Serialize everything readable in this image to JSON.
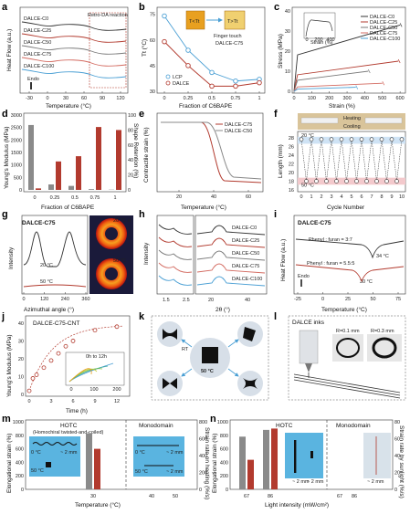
{
  "figure": {
    "panel_labels": [
      "a",
      "b",
      "c",
      "d",
      "e",
      "f",
      "g",
      "h",
      "i",
      "j",
      "k",
      "l",
      "m",
      "n"
    ]
  },
  "chart_data": [
    {
      "panel": "a",
      "type": "line",
      "xlabel": "Temperature (°C)",
      "ylabel": "Heat Flow (a.u.)",
      "xticks": [
        "-30",
        "0",
        "30",
        "60",
        "90",
        "120"
      ],
      "series": [
        {
          "name": "DALCE-C0"
        },
        {
          "name": "DALCE-C25"
        },
        {
          "name": "DALCE-C50"
        },
        {
          "name": "DALCE-C75"
        },
        {
          "name": "DALCE-C100"
        }
      ],
      "annotations": [
        "Retro-DA reaction",
        "Endo"
      ]
    },
    {
      "panel": "b",
      "type": "line",
      "xlabel": "Fraction of C6BAPE",
      "ylabel": "Tt (°C)",
      "xticks": [
        "0",
        "0.25",
        "0.5",
        "0.75",
        "1"
      ],
      "yticks": [
        "30",
        "45",
        "60",
        "75"
      ],
      "ylim": [
        30,
        78
      ],
      "x": [
        0,
        0.25,
        0.5,
        0.75,
        1
      ],
      "series": [
        {
          "name": "LCP",
          "values": [
            74,
            54,
            41,
            36,
            37
          ]
        },
        {
          "name": "DALCE",
          "values": [
            59,
            45,
            33,
            33,
            35
          ]
        }
      ],
      "annotations": [
        "Finger touch",
        "DALCE-C75",
        "T<Tt",
        "T>Tt"
      ]
    },
    {
      "panel": "c",
      "type": "line",
      "xlabel": "Strain (%)",
      "ylabel": "Stress (MPa)",
      "xticks": [
        "0",
        "100",
        "200",
        "300",
        "400",
        "500",
        "600"
      ],
      "yticks": [
        "0",
        "10",
        "20",
        "30",
        "40"
      ],
      "xlim": [
        0,
        620
      ],
      "ylim": [
        0,
        40
      ],
      "series": [
        {
          "name": "DALCE-C0",
          "end_strain": 600,
          "end_stress": 33
        },
        {
          "name": "DALCE-C25",
          "end_strain": 590,
          "end_stress": 15
        },
        {
          "name": "DALCE-C50",
          "end_strain": 420,
          "end_stress": 10
        },
        {
          "name": "DALCE-C75",
          "end_strain": 500,
          "end_stress": 4
        },
        {
          "name": "DALCE-C100",
          "end_strain": 350,
          "end_stress": 2
        }
      ],
      "inset": {
        "xlabel": "Strain (%)",
        "xticks": [
          "0",
          "200",
          "400"
        ]
      }
    },
    {
      "panel": "d",
      "type": "bar",
      "xlabel": "Fraction of C6BAPE",
      "ylabel": "Young's Modulus (MPa)",
      "y2label": "Shape Retention (%)",
      "categories": [
        "0",
        "0.25",
        "0.5",
        "0.75",
        "1"
      ],
      "yticks": [
        "0",
        "500",
        "1000",
        "1500",
        "2000",
        "2500",
        "3000"
      ],
      "y2ticks": [
        "0",
        "20",
        "40",
        "60",
        "80",
        "100"
      ],
      "ylim": [
        0,
        3000
      ],
      "y2lim": [
        0,
        100
      ],
      "series": [
        {
          "name": "Young's Modulus",
          "values": [
            2600,
            220,
            160,
            30,
            10
          ]
        },
        {
          "name": "Shape retention",
          "values": [
            2,
            38,
            45,
            84,
            80
          ]
        }
      ]
    },
    {
      "panel": "e",
      "type": "line",
      "xlabel": "Temperature (°C)",
      "ylabel": "Contractile strain (%)",
      "xticks": [
        "20",
        "40",
        "60"
      ],
      "series": [
        {
          "name": "DALCE-C75"
        },
        {
          "name": "DALCE-C50"
        }
      ]
    },
    {
      "panel": "f",
      "type": "line",
      "xlabel": "Cycle Number",
      "ylabel": "Length (mm)",
      "xticks": [
        "0",
        "1",
        "2",
        "3",
        "4",
        "5",
        "6",
        "7",
        "8",
        "9",
        "10"
      ],
      "yticks": [
        "16",
        "18",
        "20",
        "22",
        "24",
        "26",
        "28"
      ],
      "ylim": [
        16,
        29
      ],
      "x": [
        0,
        0.5,
        1,
        1.5,
        2,
        2.5,
        3,
        3.5,
        4,
        4.5,
        5,
        5.5,
        6,
        6.5,
        7,
        7.5,
        8,
        8.5,
        9,
        9.5,
        10
      ],
      "values": [
        27.6,
        18,
        27.6,
        18,
        27.6,
        18,
        27.6,
        18,
        27.6,
        18,
        27.6,
        18,
        27.6,
        18,
        27.6,
        18,
        27.6,
        18,
        27.6,
        18,
        27.6
      ],
      "labels": [
        "20 °C",
        "50 °C",
        "Heating",
        "Cooling"
      ]
    },
    {
      "panel": "g",
      "type": "line",
      "title": "DALCE-C75",
      "xlabel": "Azimuthal angle (°)",
      "ylabel": "Intensity",
      "xticks": [
        "0",
        "120",
        "240",
        "360"
      ],
      "labels": [
        "20 °C",
        "50 °C",
        "20 °C",
        "50 °C",
        "n"
      ]
    },
    {
      "panel": "h",
      "type": "line",
      "xlabel": "2θ (°)",
      "ylabel": "Intensity",
      "xticks": [
        "1.5",
        "2.5",
        "20",
        "40"
      ],
      "series": [
        {
          "name": "DALCE-C0"
        },
        {
          "name": "DALCE-C25"
        },
        {
          "name": "DALCE-C50"
        },
        {
          "name": "DALCE-C75"
        },
        {
          "name": "DALCE-C100"
        }
      ]
    },
    {
      "panel": "i",
      "type": "line",
      "title": "DALCE-C75",
      "xlabel": "Temperature (°C)",
      "ylabel": "Heat Flow (a.u.)",
      "xticks": [
        "-25",
        "0",
        "25",
        "50",
        "75"
      ],
      "annotations": [
        "Phenyl : furan = 3:7",
        "Phenyl : furan = 5.5:5",
        "34 °C",
        "30 °C",
        "Endo"
      ]
    },
    {
      "panel": "j",
      "type": "line",
      "title": "DALCE-C75-CNT",
      "xlabel": "Time (h)",
      "ylabel": "Young's Modulus (MPa)",
      "xticks": [
        "0",
        "3",
        "6",
        "9",
        "12"
      ],
      "yticks": [
        "0",
        "10",
        "20",
        "30",
        "40"
      ],
      "xlim": [
        0,
        13.5
      ],
      "ylim": [
        0,
        42
      ],
      "x": [
        0,
        0.5,
        1,
        2,
        3,
        4,
        5,
        6,
        9,
        12
      ],
      "values": [
        2,
        9,
        11,
        15,
        19,
        23,
        27,
        30,
        36,
        38
      ],
      "inset": {
        "label": "0h to 12h",
        "xlabel": "Strain (%)",
        "ylabel": "Stress (MPa)",
        "xticks": [
          "0",
          "100",
          "200"
        ]
      }
    },
    {
      "panel": "m",
      "type": "bar",
      "xlabel": "Temperature (°C)",
      "ylabel": "Elongational strain (%)",
      "y2label": "Strain rate on heating (%/s)",
      "groups": [
        "HOTC",
        "Monodomain"
      ],
      "group_subtitles": [
        "(Homochiral twisted-and-coiled)",
        ""
      ],
      "categories": [
        "30",
        "40",
        "50"
      ],
      "yticks": [
        "0",
        "200",
        "400",
        "600",
        "800",
        "1000"
      ],
      "y2ticks": [
        "0",
        "200",
        "400",
        "600",
        "800"
      ],
      "ylim": [
        0,
        1000
      ],
      "y2lim": [
        0,
        800
      ],
      "series": [
        {
          "name": "Elongational strain",
          "values": [
            830,
            0,
            0
          ]
        },
        {
          "name": "Strain rate",
          "values": [
            480,
            0,
            0
          ]
        }
      ],
      "labels": [
        "0 °C",
        "50 °C",
        "~ 2 mm",
        "0 °C",
        "50 °C",
        "~ 2 mm",
        "~ 2 mm",
        "~ 2 mm"
      ]
    },
    {
      "panel": "n",
      "type": "bar",
      "xlabel": "Light intensity (mW/cm²)",
      "ylabel": "Elongational strain (%)",
      "y2label": "Strain rate by sunlight (%/s)",
      "groups": [
        "HOTC",
        "Monodomain"
      ],
      "categories": [
        "67",
        "86",
        "67",
        "86"
      ],
      "yticks": [
        "0",
        "200",
        "400",
        "600",
        "800",
        "1000"
      ],
      "y2ticks": [
        "0",
        "20",
        "40",
        "60",
        "80"
      ],
      "ylim": [
        0,
        1000
      ],
      "y2lim": [
        0,
        80
      ],
      "series": [
        {
          "name": "Elongational strain",
          "values": [
            780,
            880,
            0,
            0
          ]
        },
        {
          "name": "Strain rate",
          "values": [
            35,
            72,
            0,
            0
          ]
        }
      ],
      "labels": [
        "~ 2 mm",
        "~ 2 mm",
        "~ 2 mm"
      ]
    }
  ],
  "panel_k": {
    "center_label": "50 °C",
    "arrow_label": "RT"
  },
  "panel_l": {
    "title": "DALCE inks",
    "labels": [
      "R=0.1 mm",
      "R=0.3 mm"
    ]
  },
  "colors": {
    "red": "#b23a2e",
    "blue": "#4a9fd4",
    "dark": "#333333",
    "gray": "#888888",
    "orange": "#e8a020",
    "pinkband": "#f3c9cc",
    "blueband": "#cfe3f5"
  }
}
